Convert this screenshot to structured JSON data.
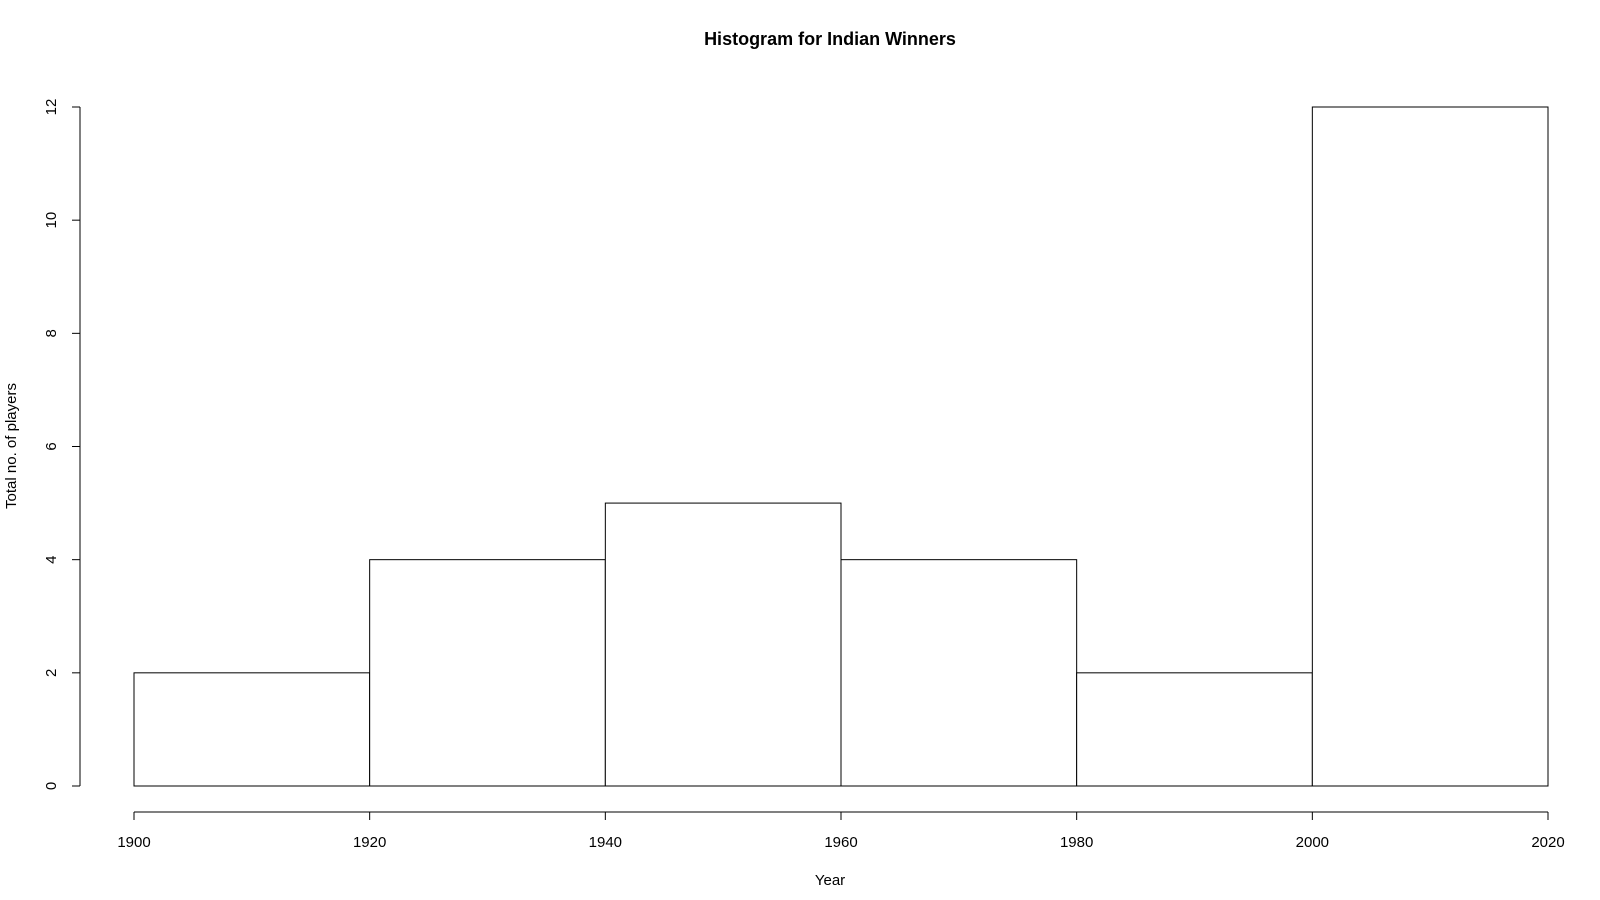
{
  "chart_data": {
    "type": "histogram",
    "title": "Histogram for Indian Winners",
    "x_label": "Year",
    "y_label": "Total no. of players",
    "bins": [
      1900,
      1920,
      1940,
      1960,
      1980,
      2000,
      2020
    ],
    "values": [
      2,
      4,
      5,
      4,
      2,
      12
    ],
    "color": "#ffffff",
    "edge_color": "#000000",
    "xlim": [
      1900,
      2020
    ],
    "xticks": [
      1900,
      1920,
      1940,
      1960,
      1980,
      2000,
      2020
    ],
    "ylim": [
      0,
      12
    ],
    "yticks": [
      0,
      2,
      4,
      6,
      8,
      10,
      12
    ]
  }
}
